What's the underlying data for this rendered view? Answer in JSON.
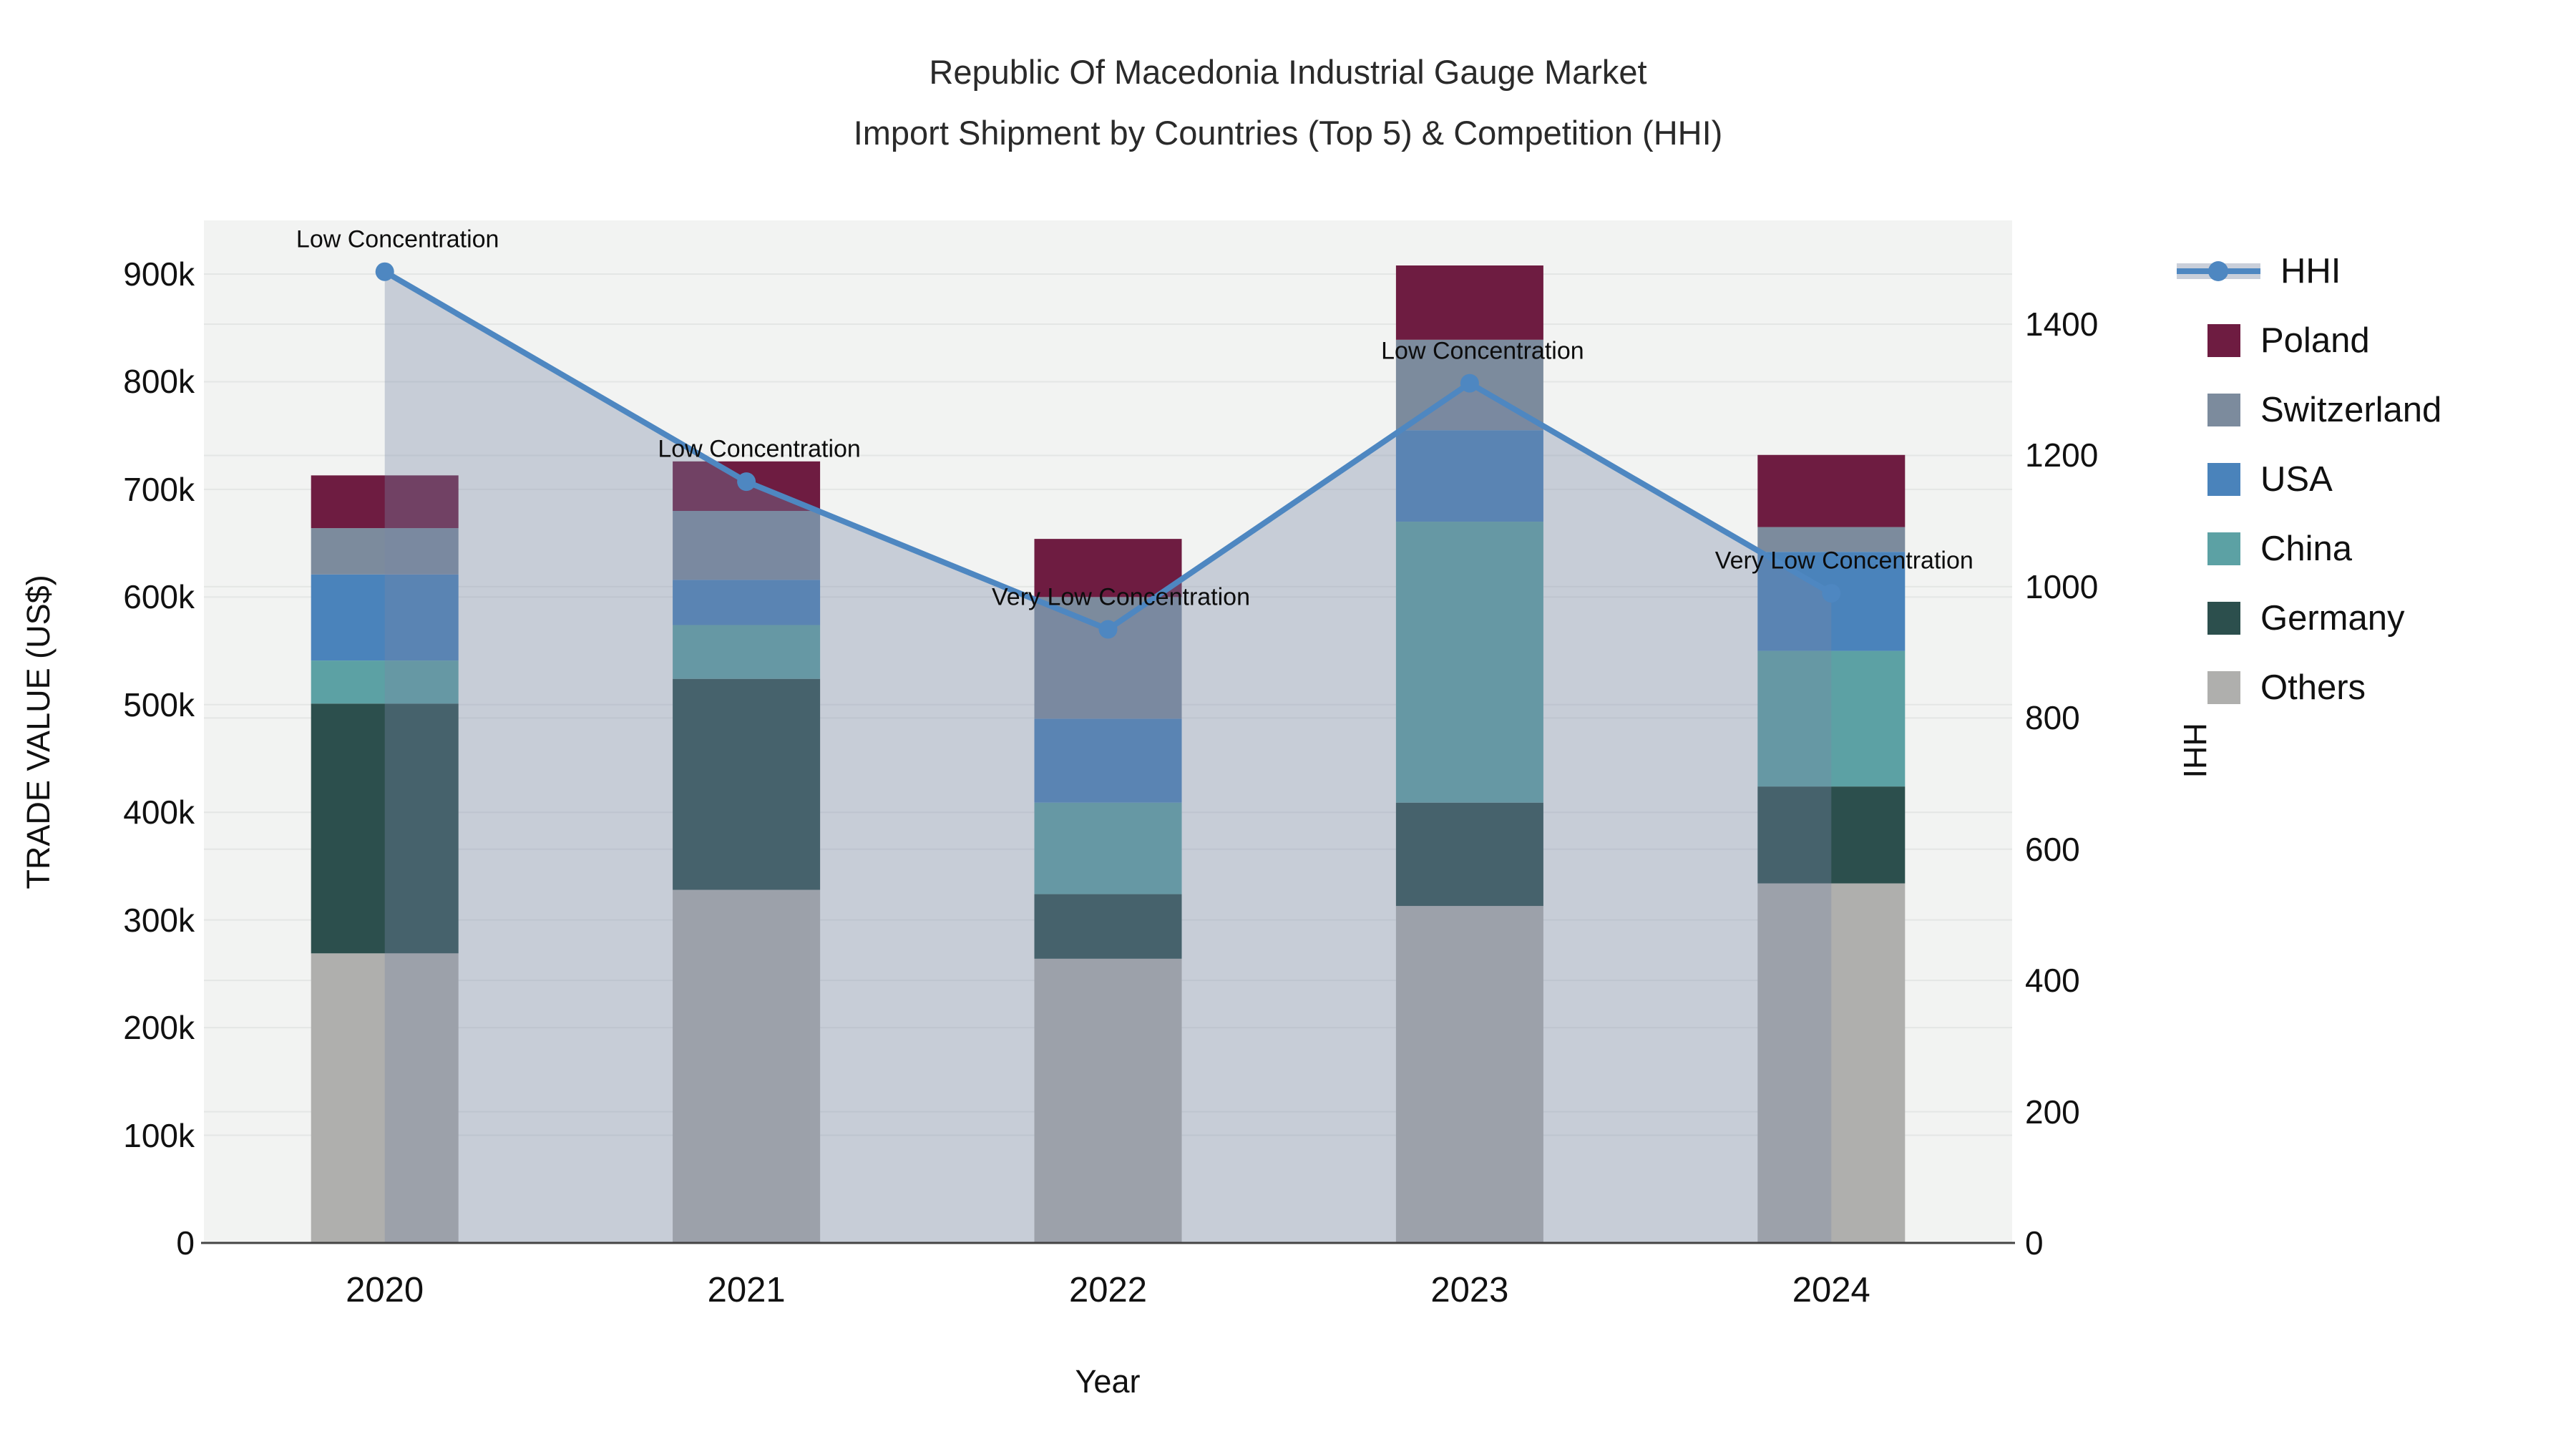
{
  "title": {
    "line1": "Republic Of Macedonia Industrial Gauge Market",
    "line2": "Import Shipment by Countries (Top 5) & Competition (HHI)"
  },
  "axes": {
    "y_left_title": "TRADE VALUE (US$)",
    "y_right_title": "HHI",
    "x_title": "Year",
    "y_left_ticks": [
      "0",
      "100k",
      "200k",
      "300k",
      "400k",
      "500k",
      "600k",
      "700k",
      "800k",
      "900k"
    ],
    "y_right_ticks": [
      "0",
      "200",
      "400",
      "600",
      "800",
      "1000",
      "1200",
      "1400"
    ],
    "x_ticks": [
      "2020",
      "2021",
      "2022",
      "2023",
      "2024"
    ]
  },
  "legend": {
    "items": [
      {
        "label": "HHI",
        "type": "line",
        "color": "#4E87C1"
      },
      {
        "label": "Poland",
        "type": "square",
        "color": "#6E1C41"
      },
      {
        "label": "Switzerland",
        "type": "square",
        "color": "#7C8B9D"
      },
      {
        "label": "USA",
        "type": "square",
        "color": "#4A83BB"
      },
      {
        "label": "China",
        "type": "square",
        "color": "#5CA1A4"
      },
      {
        "label": "Germany",
        "type": "square",
        "color": "#2C4F4D"
      },
      {
        "label": "Others",
        "type": "square",
        "color": "#AFAFAD"
      }
    ]
  },
  "chart_data": {
    "type": "bar",
    "subtype": "stacked-bars-with-line",
    "categories": [
      "2020",
      "2021",
      "2022",
      "2023",
      "2024"
    ],
    "value_unit": "thousand US$",
    "series": [
      {
        "name": "Poland",
        "color": "#6E1C41",
        "values": [
          49,
          46,
          54,
          69,
          67
        ]
      },
      {
        "name": "Switzerland",
        "color": "#7C8B9D",
        "values": [
          43,
          64,
          113,
          84,
          23
        ]
      },
      {
        "name": "USA",
        "color": "#4A83BB",
        "values": [
          80,
          42,
          78,
          85,
          92
        ]
      },
      {
        "name": "China",
        "color": "#5CA1A4",
        "values": [
          40,
          50,
          85,
          261,
          126
        ]
      },
      {
        "name": "Germany",
        "color": "#2C4F4D",
        "values": [
          232,
          196,
          60,
          96,
          90
        ]
      },
      {
        "name": "Others",
        "color": "#AFAFAD",
        "values": [
          269,
          328,
          264,
          313,
          334
        ]
      }
    ],
    "stack_order_bottom_to_top": [
      "Others",
      "Germany",
      "China",
      "USA",
      "Switzerland",
      "Poland"
    ],
    "line_series": {
      "name": "HHI",
      "color": "#4E87C1",
      "axis": "right",
      "values": [
        1480,
        1160,
        935,
        1310,
        990
      ],
      "area_fill": "rgba(120,135,165,0.35)"
    },
    "annotations": [
      {
        "year": "2020",
        "text": "Low Concentration"
      },
      {
        "year": "2021",
        "text": "Low Concentration"
      },
      {
        "year": "2022",
        "text": "Very Low Concentration"
      },
      {
        "year": "2023",
        "text": "Low Concentration"
      },
      {
        "year": "2024",
        "text": "Very Low Concentration"
      }
    ],
    "xlabel": "Year",
    "ylabel": "TRADE VALUE (US$)",
    "ylabel_right": "HHI",
    "ylim": [
      0,
      960
    ],
    "y2lim": [
      0,
      1500
    ],
    "grid": true,
    "legend_position": "right"
  },
  "style": {
    "plot_bg": "#F2F3F2",
    "grid_color": "#E4E6E5",
    "axis_line_color": "#444444",
    "hhi_line_color": "#4E87C1",
    "hhi_band_color": "#C9CFDA",
    "area_fill": "rgba(120,135,165,0.35)"
  }
}
